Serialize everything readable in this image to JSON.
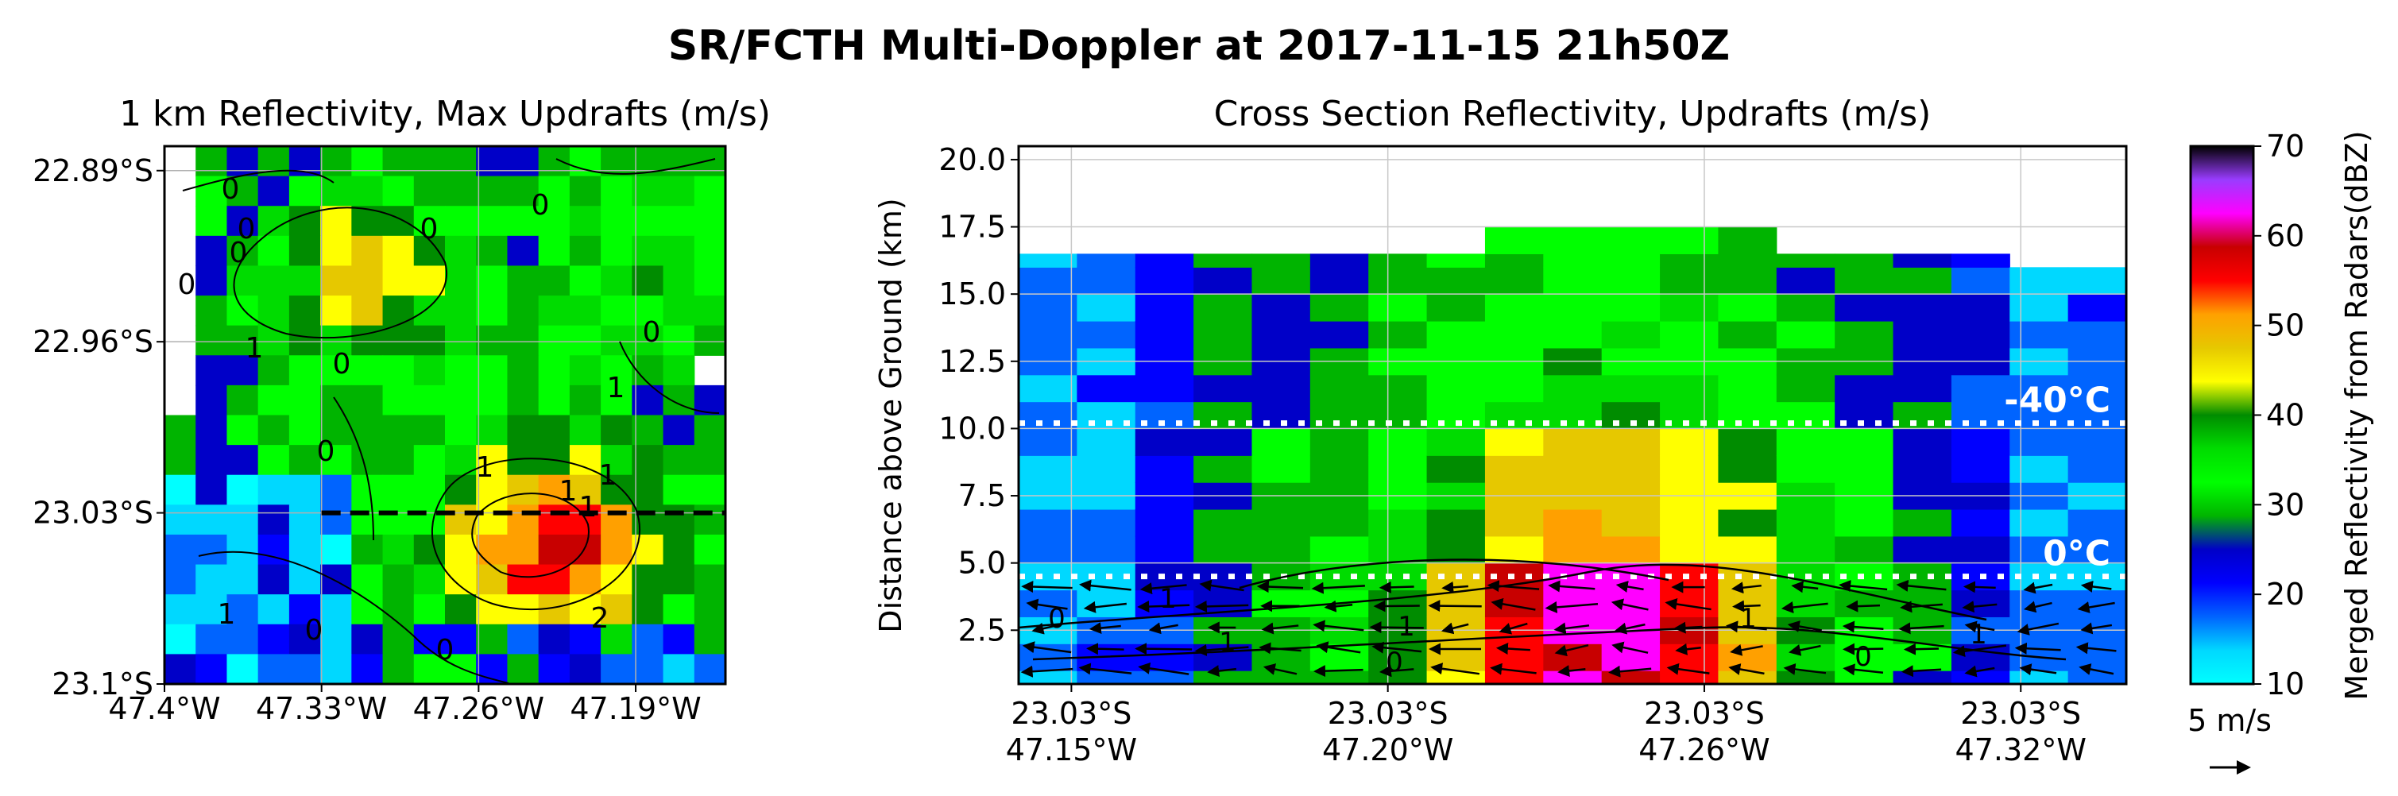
{
  "suptitle": "SR/FCTH Multi-Doppler at 2017-11-15 21h50Z",
  "colors": {
    "colormap": [
      "#00ffff",
      "#00d8ff",
      "#0064ff",
      "#0000ff",
      "#0000c8",
      "#00b400",
      "#00ff00",
      "#00dc00",
      "#008c00",
      "#ffff00",
      "#e6c800",
      "#ffa000",
      "#ff0000",
      "#c80000",
      "#ff00ff",
      "#9a3cff",
      "#000000"
    ],
    "isotherm_line": "#ffffff",
    "section_line": "#000000"
  },
  "chart_data": [
    {
      "type": "heatmap",
      "title": "1 km Reflectivity, Max Updrafts (m/s)",
      "x_ticks": [
        {
          "value": -47.4,
          "label": "47.4°W"
        },
        {
          "value": -47.33,
          "label": "47.33°W"
        },
        {
          "value": -47.26,
          "label": "47.26°W"
        },
        {
          "value": -47.19,
          "label": "47.19°W"
        }
      ],
      "y_ticks": [
        {
          "value": -22.89,
          "label": "22.89°S"
        },
        {
          "value": -22.96,
          "label": "22.96°S"
        },
        {
          "value": -23.03,
          "label": "23.03°S"
        },
        {
          "value": -23.1,
          "label": "23.10°S",
          "display": "23.1°S"
        }
      ],
      "xlim": [
        -47.4,
        -47.15
      ],
      "ylim": [
        -23.1,
        -22.88
      ],
      "grid": true,
      "field": "reflectivity (dBZ)",
      "contour_labels": [
        "0",
        "0",
        "0",
        "0",
        "1",
        "0",
        "0",
        "0",
        "0",
        "1",
        "1",
        "1",
        "1",
        "0",
        "0",
        "1",
        "1",
        "2",
        "0"
      ],
      "cross_section_line": {
        "lat": -23.03,
        "lon_start": -47.33,
        "lon_end": -47.15
      }
    },
    {
      "type": "heatmap",
      "title": "Cross Section Reflectivity, Updrafts (m/s)",
      "ylabel": "Distance above Ground (km)",
      "x_ticks": [
        {
          "value": 0,
          "label_lat": "23.03°S",
          "label_lon": "47.15°W"
        },
        {
          "value": 6,
          "label_lat": "23.03°S",
          "label_lon": "47.20°W"
        },
        {
          "value": 12,
          "label_lat": "23.03°S",
          "label_lon": "47.26°W"
        },
        {
          "value": 18,
          "label_lat": "23.03°S",
          "label_lon": "47.32°W"
        }
      ],
      "y_ticks": [
        {
          "value": 2.5,
          "label": "2.5"
        },
        {
          "value": 5.0,
          "label": "5.0"
        },
        {
          "value": 7.5,
          "label": "7.5"
        },
        {
          "value": 10.0,
          "label": "10.0"
        },
        {
          "value": 12.5,
          "label": "12.5"
        },
        {
          "value": 15.0,
          "label": "15.0"
        },
        {
          "value": 17.5,
          "label": "17.5"
        },
        {
          "value": 20.0,
          "label": "20.0"
        }
      ],
      "xlim": [
        -1,
        20
      ],
      "ylim": [
        0.5,
        20.5
      ],
      "grid": true,
      "isotherms": [
        {
          "height": 10.2,
          "label": "-40°C"
        },
        {
          "height": 4.5,
          "label": "0°C"
        }
      ],
      "quiver_key": "5 m/s",
      "contour_labels": [
        "0",
        "1",
        "1",
        "0",
        "1",
        "1",
        "0",
        "1"
      ]
    },
    {
      "type": "colorbar",
      "label": "Merged Reflectivity from Radars(dBZ)",
      "range": [
        10,
        70
      ],
      "ticks": [
        {
          "value": 10,
          "label": "10"
        },
        {
          "value": 20,
          "label": "20"
        },
        {
          "value": 30,
          "label": "30"
        },
        {
          "value": 40,
          "label": "40"
        },
        {
          "value": 50,
          "label": "50"
        },
        {
          "value": 60,
          "label": "60"
        },
        {
          "value": 70,
          "label": "70"
        }
      ]
    }
  ]
}
